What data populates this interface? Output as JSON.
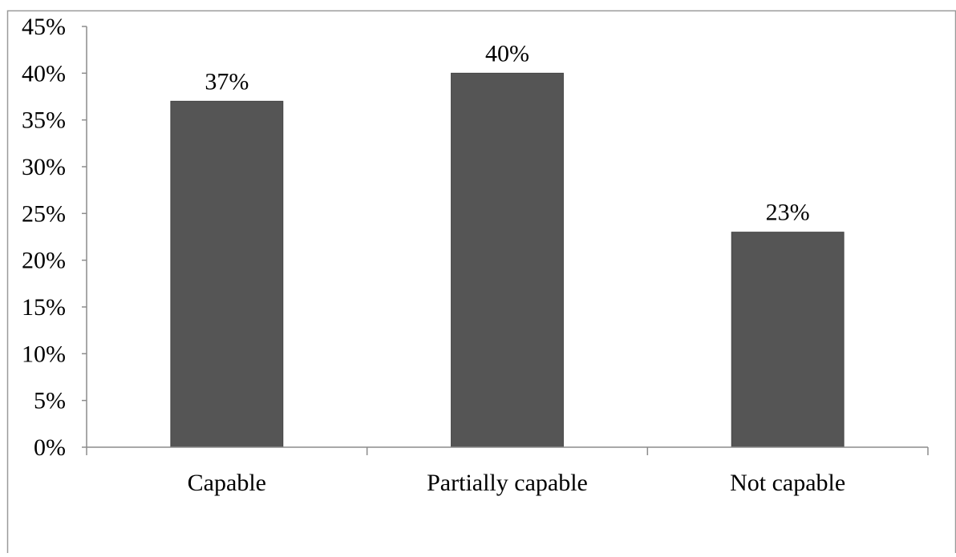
{
  "colors": {
    "bar": "#555555",
    "bar_stroke": "#444444",
    "axis": "#8c8c8c",
    "frame": "#9a9a9a",
    "background": "#ffffff"
  },
  "chart_data": {
    "type": "bar",
    "title": "",
    "xlabel": "",
    "ylabel": "",
    "categories": [
      "Capable",
      "Partially capable",
      "Not capable"
    ],
    "values": [
      37,
      40,
      23
    ],
    "data_labels": [
      "37%",
      "40%",
      "23%"
    ],
    "ylim": [
      0,
      45
    ],
    "y_ticks": [
      0,
      5,
      10,
      15,
      20,
      25,
      30,
      35,
      40,
      45
    ],
    "y_tick_labels": [
      "0%",
      "5%",
      "10%",
      "15%",
      "20%",
      "25%",
      "30%",
      "35%",
      "40%",
      "45%"
    ],
    "grid": false,
    "legend": "none"
  }
}
